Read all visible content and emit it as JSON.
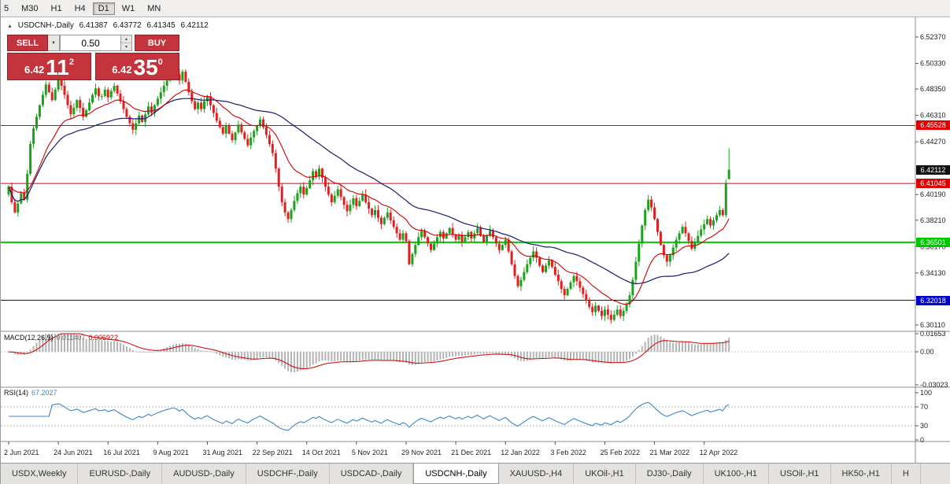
{
  "toolbar": {
    "timeframes": [
      {
        "label": "5",
        "active": false
      },
      {
        "label": "M30",
        "active": false
      },
      {
        "label": "H1",
        "active": false
      },
      {
        "label": "H4",
        "active": false
      },
      {
        "label": "D1",
        "active": true
      },
      {
        "label": "W1",
        "active": false
      },
      {
        "label": "MN",
        "active": false
      }
    ]
  },
  "chart": {
    "header": {
      "collapse_icon": "▲",
      "title": "USDCNH-,Daily",
      "open": "6.41387",
      "high": "6.43772",
      "low": "6.41345",
      "close": "6.42112"
    },
    "trade_panel": {
      "sell_label": "SELL",
      "buy_label": "BUY",
      "volume": "0.50",
      "caret_icon": "▼",
      "spin_up_icon": "▲",
      "spin_down_icon": "▼",
      "sell_price": {
        "main": "6.42",
        "pips": "11",
        "sup": "2"
      },
      "buy_price": {
        "main": "6.42",
        "pips": "35",
        "sup": "0"
      }
    },
    "price_axis": {
      "ticks": [
        "6.52370",
        "6.50330",
        "6.48350",
        "6.46310",
        "6.44270",
        "6.40190",
        "6.38210",
        "6.36170",
        "6.34130",
        "6.30110"
      ],
      "current_price": "6.42112",
      "current_badge_color": "#111111"
    },
    "hlines": [
      {
        "price": "6.45528",
        "color": "#e00000",
        "width": 1
      },
      {
        "price": "6.41045",
        "color": "#e00000",
        "width": 1
      },
      {
        "price": "6.36501",
        "color": "#00c800",
        "width": 2
      },
      {
        "price": "6.32018",
        "color": "#0000cc",
        "width": 1
      }
    ],
    "dates": [
      {
        "label": "2 Jun 2021",
        "index": 0
      },
      {
        "label": "24 Jun 2021",
        "index": 16
      },
      {
        "label": "16 Jul 2021",
        "index": 32
      },
      {
        "label": "9 Aug 2021",
        "index": 48
      },
      {
        "label": "31 Aug 2021",
        "index": 64
      },
      {
        "label": "22 Sep 2021",
        "index": 80
      },
      {
        "label": "14 Oct 2021",
        "index": 96
      },
      {
        "label": "5 Nov 2021",
        "index": 112
      },
      {
        "label": "29 Nov 2021",
        "index": 128
      },
      {
        "label": "21 Dec 2021",
        "index": 144
      },
      {
        "label": "12 Jan 2022",
        "index": 160
      },
      {
        "label": "3 Feb 2022",
        "index": 176
      },
      {
        "label": "25 Feb 2022",
        "index": 192
      },
      {
        "label": "21 Mar 2022",
        "index": 208
      },
      {
        "label": "12 Apr 2022",
        "index": 224
      }
    ]
  },
  "chart_data": {
    "type": "candlestick",
    "symbol": "USDCNH-",
    "timeframe": "Daily",
    "ohlc_last": {
      "open": 6.41387,
      "high": 6.43772,
      "low": 6.41345,
      "close": 6.42112
    },
    "y_axis_range": {
      "top": 6.5365,
      "bottom": 6.298
    },
    "up_color": "#1ca11c",
    "down_color": "#e02020",
    "moving_averages": [
      {
        "period": 18,
        "color": "#cc0000"
      },
      {
        "period": 45,
        "color": "#191970"
      }
    ],
    "closes": [
      6.408,
      6.396,
      6.388,
      6.395,
      6.403,
      6.398,
      6.418,
      6.441,
      6.453,
      6.462,
      6.471,
      6.479,
      6.487,
      6.481,
      6.475,
      6.483,
      6.491,
      6.486,
      6.479,
      6.471,
      6.464,
      6.469,
      6.475,
      6.469,
      6.462,
      6.467,
      6.473,
      6.479,
      6.484,
      6.478,
      6.478,
      6.483,
      6.477,
      6.482,
      6.486,
      6.48,
      6.474,
      6.468,
      6.462,
      6.457,
      6.452,
      6.457,
      6.463,
      6.458,
      6.464,
      6.47,
      6.465,
      6.471,
      6.476,
      6.481,
      6.486,
      6.49,
      6.493,
      6.497,
      6.495,
      6.49,
      6.497,
      6.489,
      6.481,
      6.474,
      6.468,
      6.473,
      6.468,
      6.474,
      6.478,
      6.471,
      6.465,
      6.459,
      6.454,
      6.449,
      6.455,
      6.449,
      6.444,
      6.45,
      6.456,
      6.45,
      6.445,
      6.44,
      6.446,
      6.451,
      6.455,
      6.46,
      6.454,
      6.448,
      6.441,
      6.434,
      6.422,
      6.408,
      6.396,
      6.388,
      6.383,
      6.39,
      6.397,
      6.403,
      6.408,
      6.402,
      6.407,
      6.413,
      6.42,
      6.416,
      6.422,
      6.415,
      6.408,
      6.402,
      6.396,
      6.401,
      6.406,
      6.4,
      6.394,
      6.389,
      6.394,
      6.399,
      6.393,
      6.397,
      6.402,
      6.396,
      6.391,
      6.386,
      6.39,
      6.384,
      6.379,
      6.384,
      6.388,
      6.382,
      6.377,
      6.372,
      6.367,
      6.372,
      6.366,
      6.348,
      6.356,
      6.363,
      6.369,
      6.374,
      6.369,
      6.364,
      6.359,
      6.364,
      6.369,
      6.373,
      6.368,
      6.372,
      6.376,
      6.371,
      6.367,
      6.371,
      6.365,
      6.369,
      6.373,
      6.368,
      6.372,
      6.376,
      6.37,
      6.365,
      6.37,
      6.374,
      6.369,
      6.364,
      6.359,
      6.363,
      6.367,
      6.358,
      6.348,
      6.339,
      6.331,
      6.336,
      6.342,
      6.348,
      6.353,
      6.358,
      6.353,
      6.347,
      6.342,
      6.347,
      6.351,
      6.346,
      6.34,
      6.335,
      6.329,
      6.324,
      6.329,
      6.334,
      6.339,
      6.335,
      6.33,
      6.325,
      6.32,
      6.315,
      6.311,
      6.316,
      6.312,
      6.308,
      6.313,
      6.309,
      6.305,
      6.309,
      6.313,
      6.308,
      6.312,
      6.317,
      6.324,
      6.336,
      6.35,
      6.364,
      6.378,
      6.39,
      6.398,
      6.392,
      6.383,
      6.373,
      6.363,
      6.355,
      6.35,
      6.355,
      6.361,
      6.367,
      6.372,
      6.377,
      6.372,
      6.366,
      6.36,
      6.365,
      6.37,
      6.375,
      6.379,
      6.383,
      6.378,
      6.382,
      6.386,
      6.39,
      6.386,
      6.411,
      6.42112
    ],
    "macd": {
      "label": "MACD(12,26,9)",
      "fast": 12,
      "slow": 26,
      "signal_period": 9,
      "value_main": "0.011407",
      "value_signal": "0.006922",
      "axis_labels": [
        "0.01653",
        "0.00",
        "-0.03023"
      ],
      "scale_top": 0.01653,
      "scale_bottom": -0.03023,
      "bar_color": "#b2b2b2",
      "signal_color": "#cc0000"
    },
    "rsi": {
      "label": "RSI(14)",
      "period": 14,
      "value": "67.2027",
      "axis_labels": [
        "100",
        "70",
        "30",
        "0"
      ],
      "levels": [
        70,
        30
      ],
      "line_color": "#3d85c8"
    }
  },
  "tabs": [
    {
      "label": "USDX,Weekly",
      "active": false
    },
    {
      "label": "EURUSD-,Daily",
      "active": false
    },
    {
      "label": "AUDUSD-,Daily",
      "active": false
    },
    {
      "label": "USDCHF-,Daily",
      "active": false
    },
    {
      "label": "USDCAD-,Daily",
      "active": false
    },
    {
      "label": "USDCNH-,Daily",
      "active": true
    },
    {
      "label": "XAUUSD-,H4",
      "active": false
    },
    {
      "label": "UKOil-,H1",
      "active": false
    },
    {
      "label": "DJ30-,Daily",
      "active": false
    },
    {
      "label": "UK100-,H1",
      "active": false
    },
    {
      "label": "USOil-,H1",
      "active": false
    },
    {
      "label": "HK50-,H1",
      "active": false
    },
    {
      "label": "H",
      "active": false
    }
  ]
}
